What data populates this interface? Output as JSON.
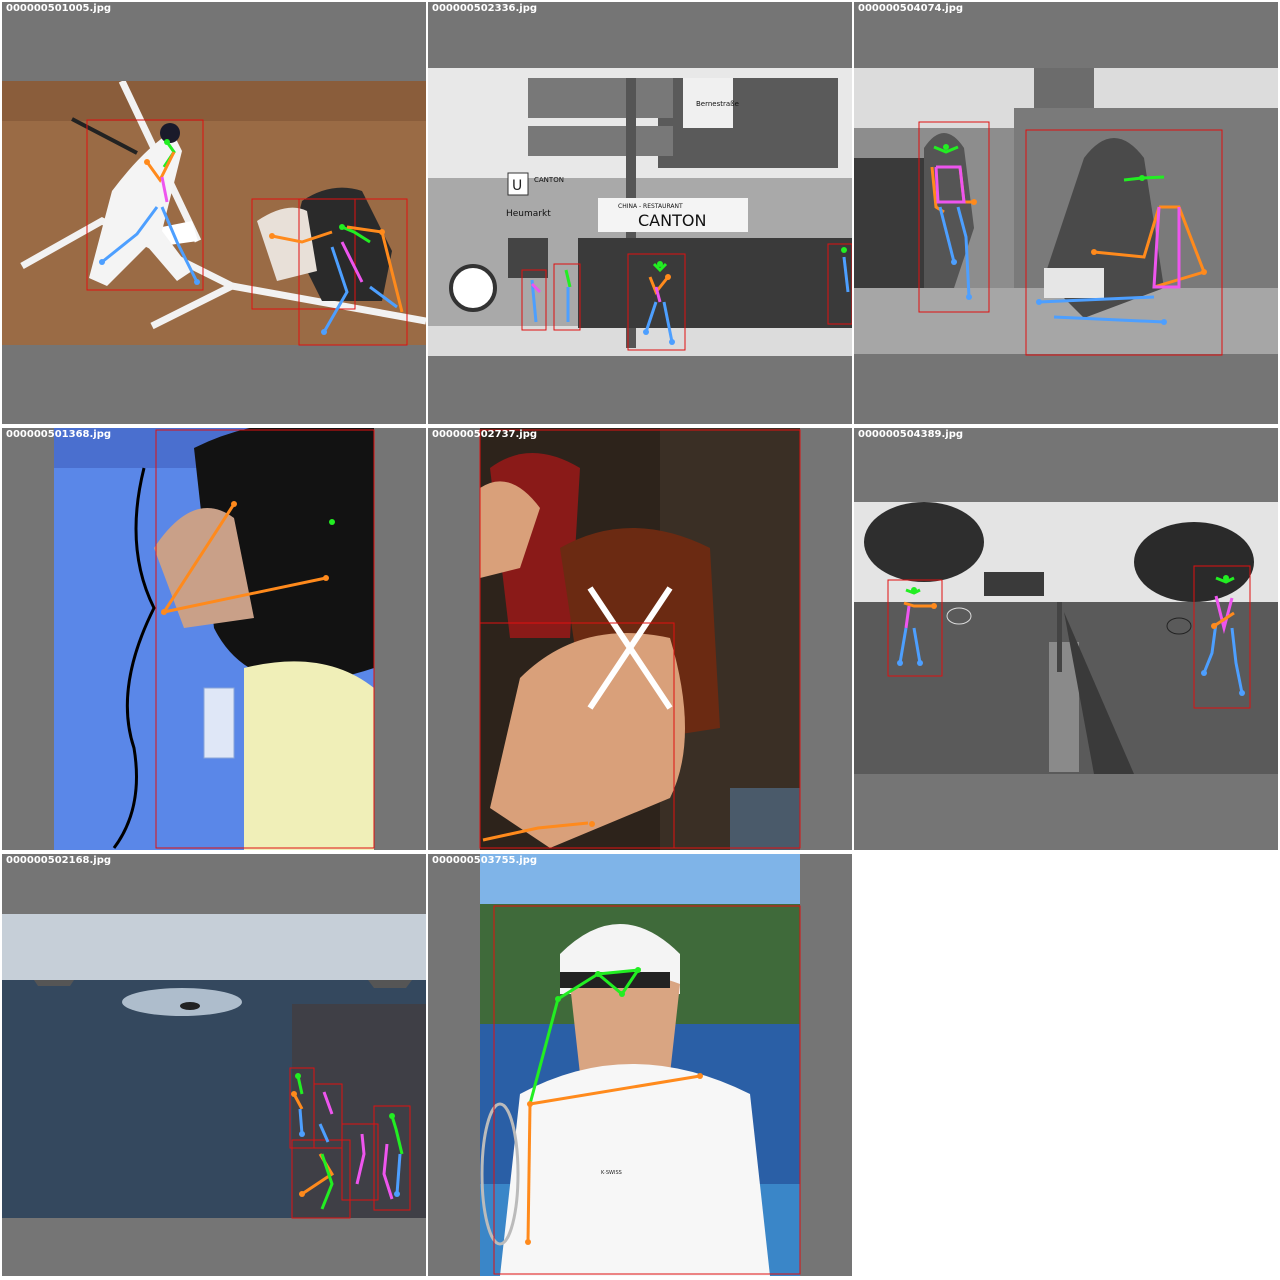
{
  "grid": {
    "tiles": [
      {
        "filename": "000000501005.jpg",
        "scene": "baseball batter and catcher"
      },
      {
        "filename": "000000502336.jpg",
        "scene": "street with China restaurant Canton"
      },
      {
        "filename": "000000504074.jpg",
        "scene": "women with laptop in garden"
      },
      {
        "filename": "000000501368.jpg",
        "scene": "wet hair and towel"
      },
      {
        "filename": "000000502737.jpg",
        "scene": "hand holding chocolate pastry"
      },
      {
        "filename": "000000504389.jpg",
        "scene": "two people playing badminton"
      },
      {
        "filename": "000000502168.jpg",
        "scene": "sailors on ship deck at sea"
      },
      {
        "filename": "000000503755.jpg",
        "scene": "tennis player in white cap"
      }
    ]
  },
  "scene_text": {
    "street_sign": "Heumarkt",
    "u_sign": "U",
    "canton_small": "CANTON",
    "restaurant_banner": "CHINA - RESTAURANT",
    "restaurant_name": "CANTON",
    "arrow_sign": "Bernestraße",
    "shirt_logo": "K·SWISS"
  },
  "colors": {
    "background": "#757575",
    "box": "#e01010",
    "face": "#22ee22",
    "arms": "#ff8a1c",
    "legs": "#4d9fff",
    "torso": "#ee55ee"
  }
}
